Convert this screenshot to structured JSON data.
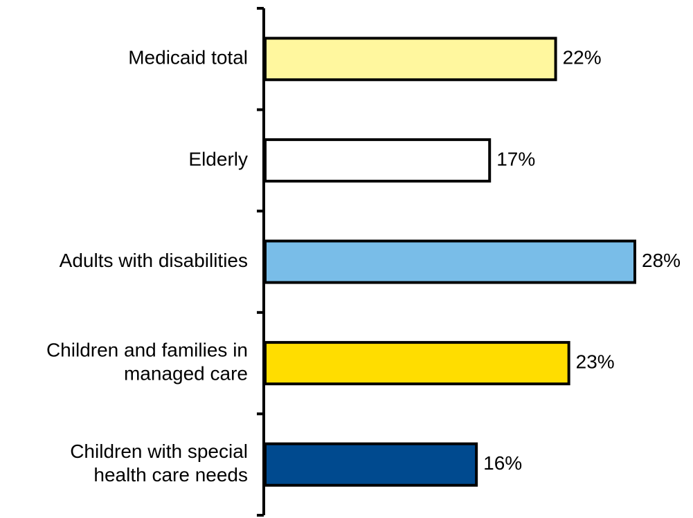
{
  "chart_data": {
    "type": "bar",
    "orientation": "horizontal",
    "categories": [
      [
        "Medicaid total"
      ],
      [
        "Elderly"
      ],
      [
        "Adults with disabilities"
      ],
      [
        "Children and families in",
        "managed care"
      ],
      [
        "Children with special",
        "health care needs"
      ]
    ],
    "values": [
      22,
      17,
      28,
      23,
      16
    ],
    "value_labels": [
      "22%",
      "17%",
      "28%",
      "23%",
      "16%"
    ],
    "colors": [
      "#fff79e",
      "#ffffff",
      "#79bde8",
      "#ffdd00",
      "#004a8f"
    ],
    "xlim": [
      0,
      28
    ],
    "grid": false,
    "title": "",
    "xlabel": "",
    "ylabel": ""
  }
}
